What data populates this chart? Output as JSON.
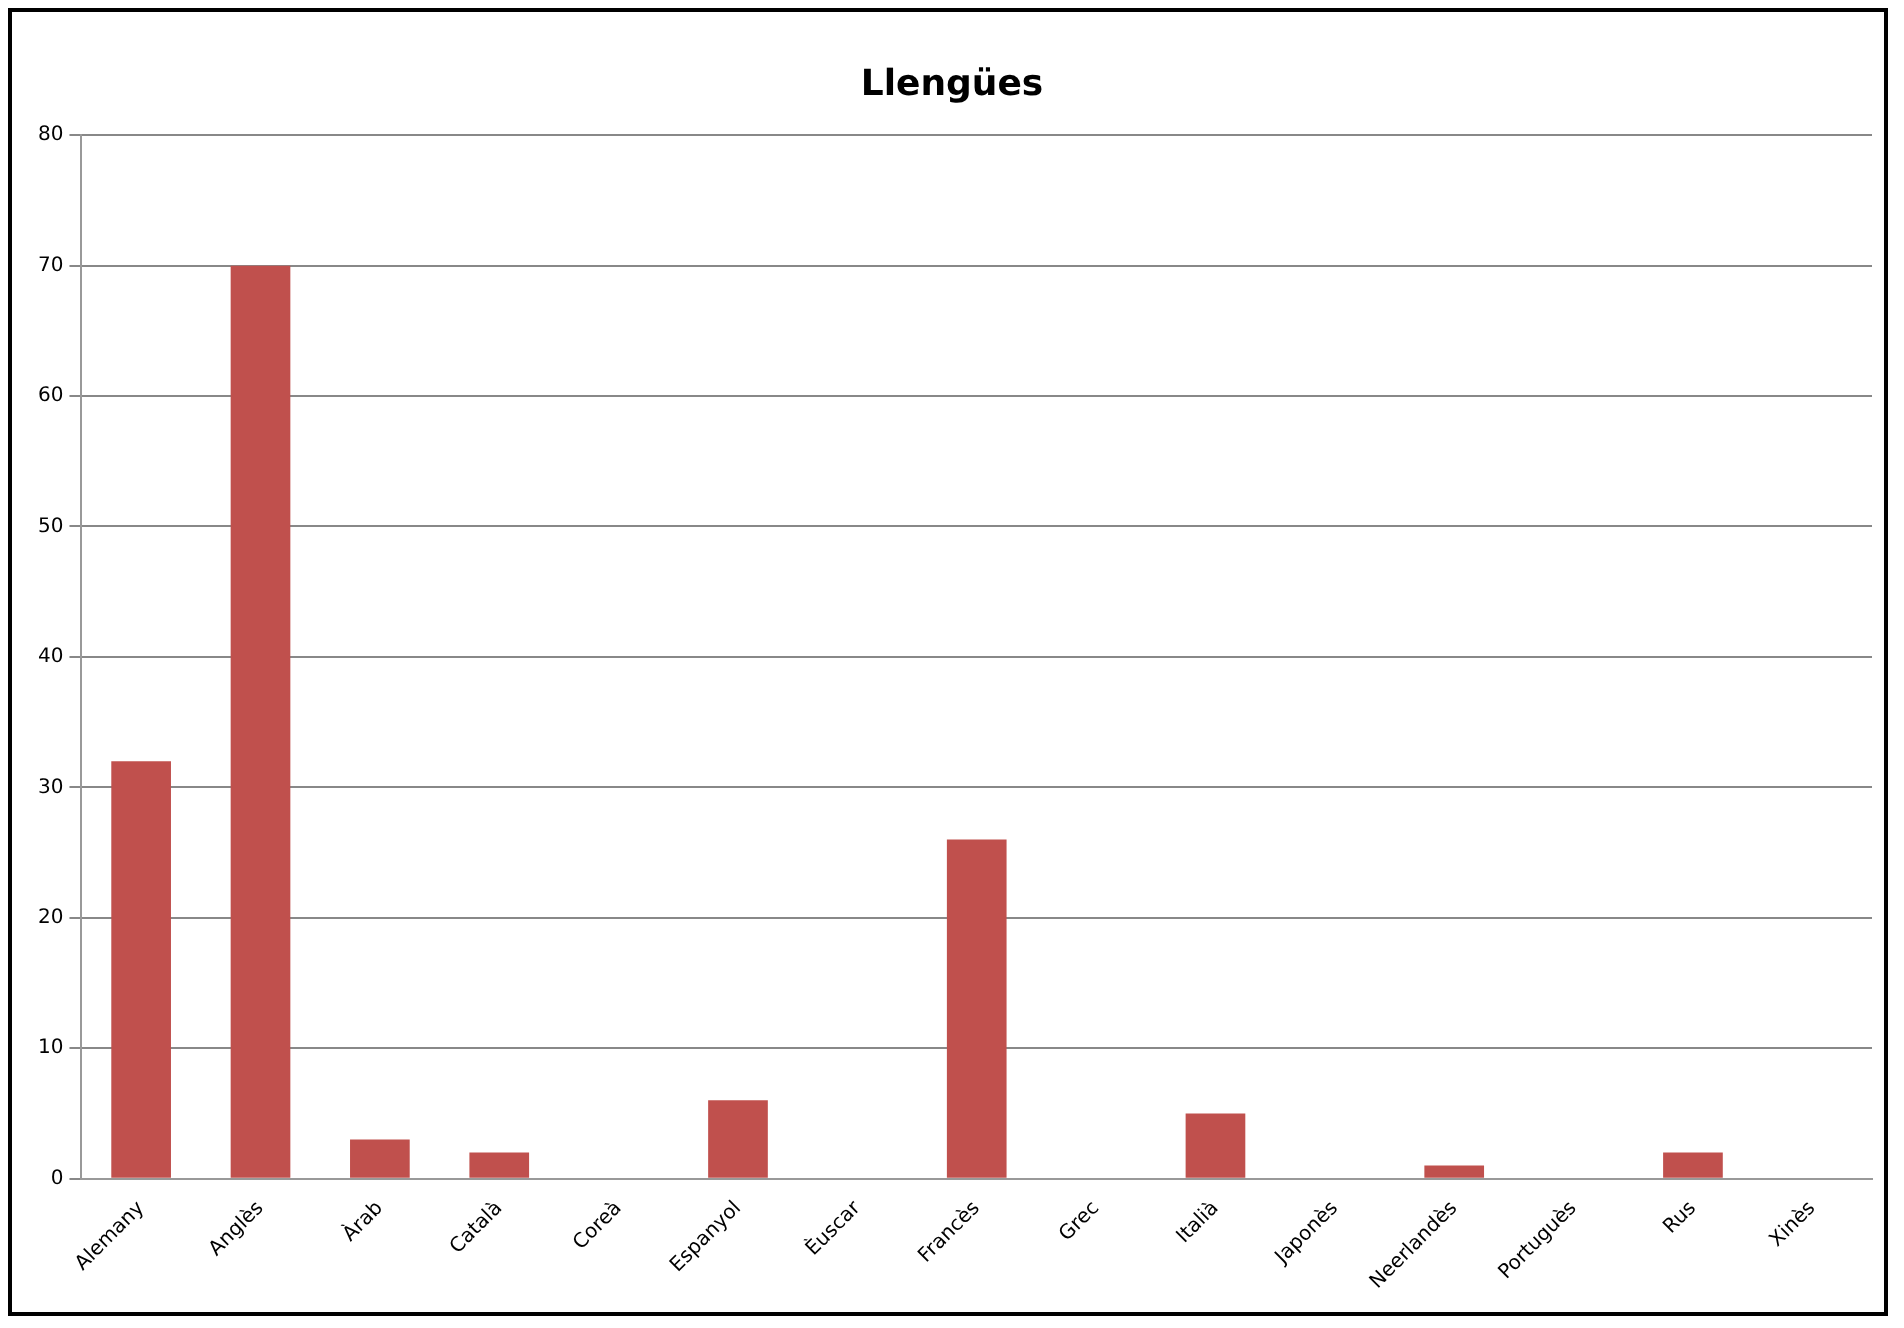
{
  "chart_data": {
    "type": "bar",
    "title": "Llengües",
    "categories": [
      "Alemany",
      "Anglès",
      "Àrab",
      "Català",
      "Coreà",
      "Espanyol",
      "Èuscar",
      "Francès",
      "Grec",
      "Italià",
      "Japonès",
      "Neerlandès",
      "Portuguès",
      "Rus",
      "Xinès"
    ],
    "values": [
      32,
      70,
      3,
      2,
      0,
      6,
      0,
      26,
      0,
      5,
      0,
      1,
      0,
      2,
      0
    ],
    "color": "#c0504d",
    "ylim": [
      0,
      80
    ],
    "yticks": [
      0,
      10,
      20,
      30,
      40,
      50,
      60,
      70,
      80
    ],
    "grid": "y",
    "legend": false
  }
}
